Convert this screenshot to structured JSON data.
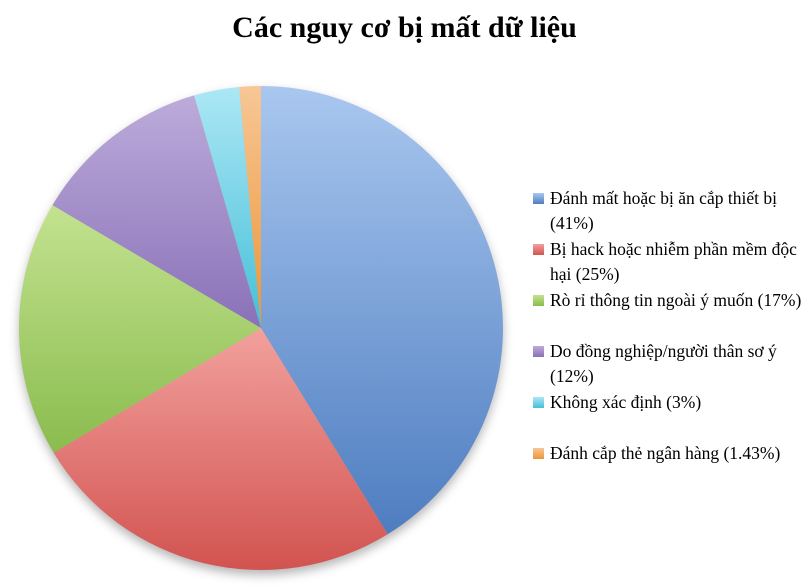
{
  "title": "Các nguy cơ bị mất dữ liệu",
  "background_color": "#ffffff",
  "chart_data": {
    "type": "pie",
    "title": "Các nguy cơ bị mất dữ liệu",
    "legend_position": "right",
    "direction": "clockwise",
    "start_angle_deg": 0,
    "labeled_percent_total": 99.43,
    "slices": [
      {
        "category": "Đánh mất hoặc bị ăn cắp thiết bị",
        "percent": 41,
        "label": "Đánh mất hoặc bị ăn cắp thiết bị (41%)",
        "lines": [
          "Đánh mất hoặc bị ăn cắp thiết bị",
          "(41%)"
        ],
        "color_name": "blue",
        "color_light": "#a9c7ef",
        "color_dark": "#4e7dc0"
      },
      {
        "category": "Bị hack hoặc nhiễm phần mềm độc hại",
        "percent": 25,
        "label": "Bị hack hoặc nhiễm phần mềm độc hại (25%)",
        "lines": [
          "Bị hack hoặc nhiễm phần mềm độc",
          "hại (25%)"
        ],
        "color_name": "red",
        "color_light": "#f2a19d",
        "color_dark": "#d25350"
      },
      {
        "category": "Rò rỉ thông tin ngoài ý muốn",
        "percent": 17,
        "label": "Rò rỉ thông tin ngoài ý muốn (17%)",
        "lines": [
          "Rò rỉ thông tin ngoài ý muốn (17%)"
        ],
        "color_name": "green",
        "color_light": "#c3e290",
        "color_dark": "#8abc4e"
      },
      {
        "category": "Do đồng nghiệp/người thân sơ ý",
        "percent": 12,
        "label": "Do đồng nghiệp/người thân sơ ý (12%)",
        "lines": [
          "Do đồng nghiệp/người thân sơ ý",
          "(12%)"
        ],
        "color_name": "purple",
        "color_light": "#bcabda",
        "color_dark": "#8a71b8"
      },
      {
        "category": "Không xác định",
        "percent": 3,
        "label": "Không xác định (3%)",
        "lines": [
          "Không xác định (3%)"
        ],
        "color_name": "cyan",
        "color_light": "#ace7f5",
        "color_dark": "#45bfd8"
      },
      {
        "category": "Đánh cắp thẻ ngân hàng",
        "percent": 1.43,
        "label": "Đánh cắp thẻ ngân hàng (1.43%)",
        "lines": [
          "Đánh cắp thẻ ngân hàng (1.43%)"
        ],
        "color_name": "orange",
        "color_light": "#f7c795",
        "color_dark": "#ec9537"
      }
    ]
  }
}
